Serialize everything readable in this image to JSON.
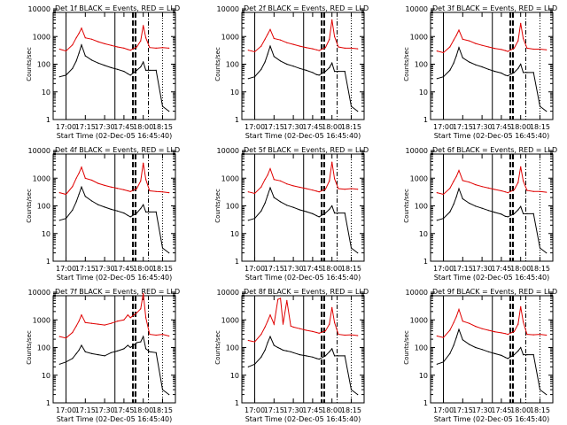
{
  "figure": {
    "ylabel": "Counts/sec",
    "xlabel": "Start Time (02-Dec-05 16:45:40)",
    "xticks": [
      "17:00",
      "17:15",
      "17:30",
      "17:45",
      "18:00",
      "18:15"
    ],
    "yticks": [
      "1",
      "10",
      "100",
      "1000",
      "10000"
    ],
    "colors": {
      "events": "#000000",
      "lld": "#e00000",
      "axes": "#000000"
    }
  },
  "chart_data": [
    {
      "type": "line",
      "title": "Det 1f BLACK = Events, RED = LLD",
      "xlabel": "Start Time (02-Dec-05 16:45:40)",
      "ylabel": "Counts/sec",
      "xlim": [
        "16:50",
        "18:25"
      ],
      "ylim": [
        1,
        10000
      ],
      "yscale": "log",
      "x": [
        "16:55",
        "17:00",
        "17:05",
        "17:08",
        "17:10",
        "17:12",
        "17:15",
        "17:20",
        "17:25",
        "17:30",
        "17:35",
        "17:40",
        "17:45",
        "17:48",
        "17:50",
        "17:55",
        "17:58",
        "18:00",
        "18:02",
        "18:05",
        "18:10",
        "18:15",
        "18:20"
      ],
      "series": [
        {
          "name": "Events",
          "values": [
            35,
            40,
            70,
            130,
            250,
            500,
            200,
            140,
            110,
            90,
            75,
            65,
            55,
            45,
            40,
            60,
            80,
            120,
            60,
            60,
            60,
            3,
            2
          ]
        },
        {
          "name": "LLD",
          "values": [
            350,
            300,
            500,
            900,
            1300,
            2000,
            900,
            800,
            650,
            550,
            480,
            420,
            380,
            340,
            320,
            420,
            700,
            2500,
            900,
            400,
            380,
            400,
            380
          ]
        }
      ]
    },
    {
      "type": "line",
      "title": "Det 2f BLACK = Events, RED = LLD",
      "xlabel": "Start Time (02-Dec-05 16:45:40)",
      "ylabel": "Counts/sec",
      "xlim": [
        "16:50",
        "18:25"
      ],
      "ylim": [
        1,
        10000
      ],
      "yscale": "log",
      "x": [
        "16:55",
        "17:00",
        "17:05",
        "17:08",
        "17:10",
        "17:12",
        "17:15",
        "17:20",
        "17:25",
        "17:30",
        "17:35",
        "17:40",
        "17:45",
        "17:48",
        "17:50",
        "17:55",
        "17:58",
        "18:00",
        "18:02",
        "18:05",
        "18:10",
        "18:15",
        "18:20"
      ],
      "series": [
        {
          "name": "Events",
          "values": [
            30,
            35,
            65,
            120,
            230,
            450,
            190,
            130,
            100,
            85,
            70,
            60,
            50,
            42,
            40,
            55,
            75,
            110,
            55,
            55,
            55,
            3,
            2
          ]
        },
        {
          "name": "LLD",
          "values": [
            320,
            280,
            450,
            800,
            1200,
            1800,
            850,
            750,
            600,
            520,
            450,
            400,
            360,
            330,
            310,
            400,
            800,
            4000,
            1000,
            420,
            380,
            380,
            360
          ]
        }
      ]
    },
    {
      "type": "line",
      "title": "Det 3f BLACK = Events, RED = LLD",
      "xlabel": "Start Time (02-Dec-05 16:45:40)",
      "ylabel": "Counts/sec",
      "xlim": [
        "16:50",
        "18:25"
      ],
      "ylim": [
        1,
        10000
      ],
      "yscale": "log",
      "x": [
        "16:55",
        "17:00",
        "17:05",
        "17:08",
        "17:10",
        "17:12",
        "17:15",
        "17:20",
        "17:25",
        "17:30",
        "17:35",
        "17:40",
        "17:45",
        "17:48",
        "17:50",
        "17:55",
        "17:58",
        "18:00",
        "18:02",
        "18:05",
        "18:10",
        "18:15",
        "18:20"
      ],
      "series": [
        {
          "name": "Events",
          "values": [
            30,
            35,
            60,
            110,
            200,
            400,
            170,
            120,
            95,
            80,
            65,
            55,
            48,
            40,
            38,
            50,
            70,
            100,
            50,
            50,
            50,
            3,
            2
          ]
        },
        {
          "name": "LLD",
          "values": [
            300,
            260,
            420,
            750,
            1100,
            1700,
            800,
            700,
            560,
            480,
            420,
            370,
            340,
            310,
            290,
            380,
            700,
            3000,
            850,
            380,
            350,
            350,
            330
          ]
        }
      ]
    },
    {
      "type": "line",
      "title": "Det 4f BLACK = Events, RED = LLD",
      "xlabel": "Start Time (02-Dec-05 16:45:40)",
      "ylabel": "Counts/sec",
      "xlim": [
        "16:50",
        "18:25"
      ],
      "ylim": [
        1,
        10000
      ],
      "yscale": "log",
      "x": [
        "16:55",
        "17:00",
        "17:05",
        "17:08",
        "17:10",
        "17:12",
        "17:15",
        "17:20",
        "17:25",
        "17:30",
        "17:35",
        "17:40",
        "17:45",
        "17:48",
        "17:50",
        "17:55",
        "17:58",
        "18:00",
        "18:02",
        "18:05",
        "18:10",
        "18:15",
        "18:20"
      ],
      "series": [
        {
          "name": "Events",
          "values": [
            30,
            35,
            70,
            140,
            260,
            480,
            220,
            150,
            110,
            90,
            75,
            65,
            55,
            45,
            40,
            55,
            80,
            110,
            60,
            60,
            60,
            3,
            2
          ]
        },
        {
          "name": "LLD",
          "values": [
            300,
            260,
            500,
            1000,
            1500,
            2500,
            1000,
            850,
            650,
            550,
            480,
            430,
            380,
            350,
            330,
            420,
            800,
            3500,
            900,
            350,
            330,
            320,
            300
          ]
        }
      ]
    },
    {
      "type": "line",
      "title": "Det 5f BLACK = Events, RED = LLD",
      "xlabel": "Start Time (02-Dec-05 16:45:40)",
      "ylabel": "Counts/sec",
      "xlim": [
        "16:50",
        "18:25"
      ],
      "ylim": [
        1,
        10000
      ],
      "yscale": "log",
      "x": [
        "16:55",
        "17:00",
        "17:05",
        "17:08",
        "17:10",
        "17:12",
        "17:15",
        "17:20",
        "17:25",
        "17:30",
        "17:35",
        "17:40",
        "17:45",
        "17:48",
        "17:50",
        "17:55",
        "17:58",
        "18:00",
        "18:02",
        "18:05",
        "18:10",
        "18:15",
        "18:20"
      ],
      "series": [
        {
          "name": "Events",
          "values": [
            30,
            35,
            65,
            125,
            240,
            450,
            200,
            140,
            105,
            88,
            72,
            62,
            52,
            44,
            40,
            55,
            75,
            100,
            55,
            55,
            55,
            3,
            2
          ]
        },
        {
          "name": "LLD",
          "values": [
            320,
            280,
            480,
            900,
            1300,
            2200,
            900,
            800,
            620,
            530,
            470,
            420,
            370,
            340,
            320,
            400,
            800,
            3800,
            950,
            420,
            400,
            420,
            400
          ]
        }
      ]
    },
    {
      "type": "line",
      "title": "Det 6f BLACK = Events, RED = LLD",
      "xlabel": "Start Time (02-Dec-05 16:45:40)",
      "ylabel": "Counts/sec",
      "xlim": [
        "16:50",
        "18:25"
      ],
      "ylim": [
        1,
        10000
      ],
      "yscale": "log",
      "x": [
        "16:55",
        "17:00",
        "17:05",
        "17:08",
        "17:10",
        "17:12",
        "17:15",
        "17:20",
        "17:25",
        "17:30",
        "17:35",
        "17:40",
        "17:45",
        "17:48",
        "17:50",
        "17:55",
        "17:58",
        "18:00",
        "18:02",
        "18:05",
        "18:10",
        "18:15",
        "18:20"
      ],
      "series": [
        {
          "name": "Events",
          "values": [
            30,
            35,
            60,
            115,
            210,
            420,
            180,
            125,
            98,
            82,
            68,
            58,
            50,
            42,
            40,
            52,
            72,
            95,
            52,
            52,
            52,
            3,
            2
          ]
        },
        {
          "name": "LLD",
          "values": [
            300,
            260,
            430,
            780,
            1150,
            1900,
            820,
            720,
            580,
            500,
            440,
            390,
            350,
            320,
            300,
            380,
            700,
            2600,
            800,
            360,
            330,
            330,
            310
          ]
        }
      ]
    },
    {
      "type": "line",
      "title": "Det 7f BLACK = Events, RED = LLD",
      "xlabel": "Start Time (02-Dec-05 16:45:40)",
      "ylabel": "Counts/sec",
      "xlim": [
        "16:50",
        "18:25"
      ],
      "ylim": [
        1,
        10000
      ],
      "yscale": "log",
      "x": [
        "16:55",
        "17:00",
        "17:05",
        "17:08",
        "17:10",
        "17:12",
        "17:15",
        "17:20",
        "17:25",
        "17:30",
        "17:35",
        "17:40",
        "17:45",
        "17:48",
        "17:50",
        "17:55",
        "17:58",
        "18:00",
        "18:02",
        "18:05",
        "18:10",
        "18:15",
        "18:20"
      ],
      "series": [
        {
          "name": "Events",
          "values": [
            25,
            30,
            40,
            60,
            80,
            120,
            70,
            60,
            55,
            50,
            65,
            75,
            90,
            120,
            100,
            150,
            160,
            250,
            90,
            70,
            65,
            3,
            2
          ]
        },
        {
          "name": "LLD",
          "values": [
            250,
            220,
            350,
            600,
            900,
            1500,
            800,
            750,
            700,
            650,
            750,
            900,
            1000,
            1500,
            1200,
            1800,
            2500,
            9000,
            1200,
            300,
            280,
            300,
            260
          ]
        }
      ]
    },
    {
      "type": "line",
      "title": "Det 8f BLACK = Events, RED = LLD",
      "xlabel": "Start Time (02-Dec-05 16:45:40)",
      "ylabel": "Counts/sec",
      "xlim": [
        "16:50",
        "18:25"
      ],
      "ylim": [
        1,
        10000
      ],
      "yscale": "log",
      "x": [
        "16:55",
        "17:00",
        "17:05",
        "17:08",
        "17:10",
        "17:12",
        "17:15",
        "17:18",
        "17:20",
        "17:22",
        "17:25",
        "17:28",
        "17:30",
        "17:35",
        "17:40",
        "17:45",
        "17:48",
        "17:50",
        "17:55",
        "17:58",
        "18:00",
        "18:02",
        "18:05",
        "18:10",
        "18:15",
        "18:20"
      ],
      "series": [
        {
          "name": "Events",
          "values": [
            20,
            25,
            45,
            80,
            150,
            250,
            120,
            100,
            90,
            80,
            75,
            70,
            65,
            55,
            50,
            45,
            40,
            38,
            50,
            70,
            90,
            50,
            50,
            50,
            3,
            2
          ]
        },
        {
          "name": "LLD",
          "values": [
            180,
            160,
            300,
            550,
            900,
            1500,
            700,
            5500,
            6000,
            700,
            5000,
            600,
            550,
            480,
            420,
            380,
            350,
            330,
            400,
            700,
            2800,
            800,
            300,
            280,
            290,
            270
          ]
        }
      ]
    },
    {
      "type": "line",
      "title": "Det 9f BLACK = Events, RED = LLD",
      "xlabel": "Start Time (02-Dec-05 16:45:40)",
      "ylabel": "Counts/sec",
      "xlim": [
        "16:50",
        "18:25"
      ],
      "ylim": [
        1,
        10000
      ],
      "yscale": "log",
      "x": [
        "16:55",
        "17:00",
        "17:05",
        "17:08",
        "17:10",
        "17:12",
        "17:15",
        "17:20",
        "17:25",
        "17:30",
        "17:35",
        "17:40",
        "17:45",
        "17:48",
        "17:50",
        "17:55",
        "17:58",
        "18:00",
        "18:02",
        "18:05",
        "18:10",
        "18:15",
        "18:20"
      ],
      "series": [
        {
          "name": "Events",
          "values": [
            25,
            30,
            60,
            120,
            230,
            450,
            190,
            130,
            100,
            85,
            70,
            60,
            52,
            44,
            40,
            55,
            75,
            100,
            55,
            55,
            55,
            3,
            2
          ]
        },
        {
          "name": "LLD",
          "values": [
            260,
            230,
            420,
            800,
            1300,
            2400,
            900,
            750,
            580,
            480,
            420,
            370,
            340,
            320,
            300,
            380,
            700,
            3000,
            850,
            300,
            290,
            300,
            280
          ]
        }
      ]
    }
  ]
}
